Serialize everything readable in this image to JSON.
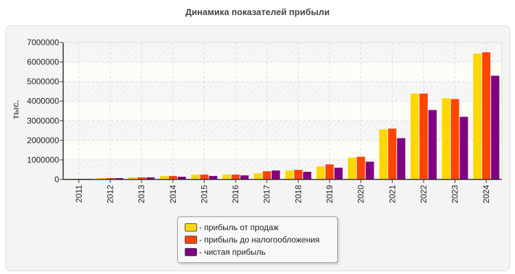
{
  "chart_data": {
    "type": "bar",
    "title": "Динамика показателей прибыли",
    "ylabel": "тыс.",
    "xlabel": "",
    "ylim": [
      0,
      7000000
    ],
    "yticks": [
      "0",
      "1000000",
      "2000000",
      "3000000",
      "4000000",
      "5000000",
      "6000000",
      "7000000"
    ],
    "grid": true,
    "legend_position": "bottom",
    "categories": [
      "2011",
      "2012",
      "2013",
      "2014",
      "2015",
      "2016",
      "2017",
      "2018",
      "2019",
      "2020",
      "2021",
      "2022",
      "2023",
      "2024"
    ],
    "series": [
      {
        "name": "- прибыль от продаж",
        "color": "#FFD700",
        "values": [
          35000,
          70000,
          105000,
          180000,
          250000,
          250000,
          320000,
          460000,
          670000,
          1120000,
          2560000,
          4390000,
          4150000,
          6430000
        ]
      },
      {
        "name": "- прибыль до налогообложения",
        "color": "#FF4500",
        "values": [
          35000,
          70000,
          105000,
          180000,
          250000,
          250000,
          420000,
          490000,
          770000,
          1160000,
          2600000,
          4390000,
          4110000,
          6500000
        ]
      },
      {
        "name": "- чистая прибыль",
        "color": "#800080",
        "values": [
          30000,
          70000,
          105000,
          140000,
          180000,
          210000,
          460000,
          390000,
          600000,
          910000,
          2110000,
          3550000,
          3200000,
          5300000
        ]
      }
    ]
  }
}
